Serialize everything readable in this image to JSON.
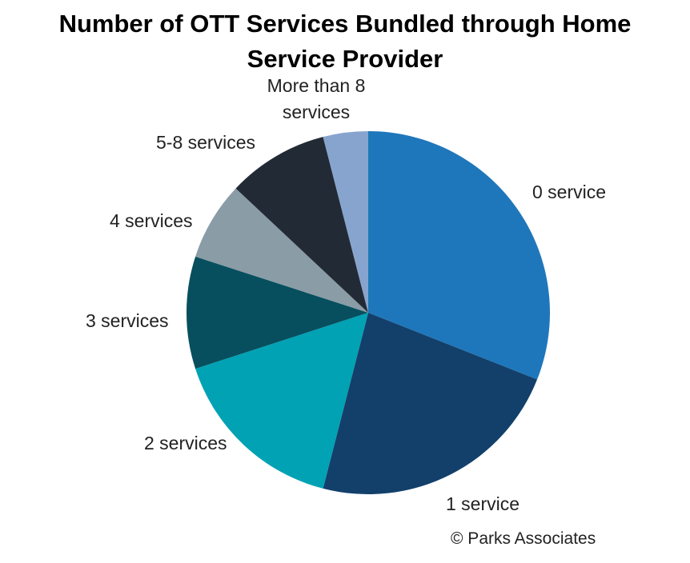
{
  "chart_data": {
    "type": "pie",
    "title_lines": [
      "Number of OTT Services Bundled through Home",
      "Service Provider"
    ],
    "slices": [
      {
        "label": "0 service",
        "value": 31,
        "color": "#1f77bb"
      },
      {
        "label": "1 service",
        "value": 23,
        "color": "#12406b"
      },
      {
        "label": "2 services",
        "value": 16,
        "color": "#00a2b4"
      },
      {
        "label": "3 services",
        "value": 10,
        "color": "#074f5e"
      },
      {
        "label": "4 services",
        "value": 7,
        "color": "#8a9ca6"
      },
      {
        "label": "5-8 services",
        "value": 9,
        "color": "#222b35"
      },
      {
        "label": "More than 8 services",
        "label_lines": [
          "More than 8",
          "services"
        ],
        "value": 4,
        "color": "#87a4cf"
      }
    ]
  },
  "footer": {
    "copyright": "© Parks Associates"
  }
}
